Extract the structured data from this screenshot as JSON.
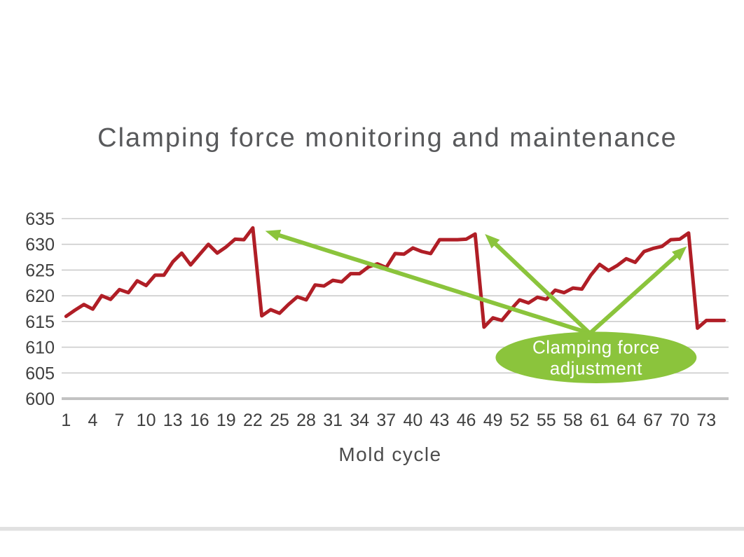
{
  "page": {
    "background_color": "#ffffff"
  },
  "chart_data": {
    "type": "line",
    "title": "Clamping force monitoring and maintenance",
    "xlabel": "Mold cycle",
    "ylabel": "",
    "ylim": [
      600,
      635
    ],
    "y_ticks": [
      600,
      605,
      610,
      615,
      620,
      625,
      630,
      635
    ],
    "x_tick_labels": [
      "1",
      "4",
      "7",
      "10",
      "13",
      "16",
      "19",
      "22",
      "25",
      "28",
      "31",
      "34",
      "37",
      "40",
      "43",
      "46",
      "49",
      "52",
      "55",
      "58",
      "61",
      "64",
      "67",
      "70",
      "73"
    ],
    "grid": "horizontal",
    "legend": "none",
    "colors": {
      "line": "#b01e26",
      "grid": "#cccccc",
      "axis": "#c2c2c2",
      "tick_text": "#3f3f3f",
      "annotation_green": "#8bc43c",
      "annotation_text": "#ffffff",
      "title_text": "#58595b"
    },
    "series": [
      {
        "name": "Clamping force",
        "color": "#b01e26",
        "x_start": 1,
        "values": [
          616.0,
          617.2,
          618.3,
          617.4,
          620.0,
          619.3,
          621.2,
          620.6,
          622.9,
          622.0,
          624.0,
          624.0,
          626.6,
          628.3,
          626.0,
          628.0,
          630.0,
          628.3,
          629.5,
          631.0,
          630.9,
          633.2,
          616.1,
          617.3,
          616.6,
          618.3,
          619.8,
          619.2,
          622.1,
          621.9,
          623.0,
          622.7,
          624.3,
          624.3,
          625.6,
          626.2,
          625.5,
          628.2,
          628.1,
          629.3,
          628.6,
          628.2,
          630.9,
          630.9,
          630.9,
          631.0,
          632.0,
          613.9,
          615.7,
          615.2,
          617.3,
          619.2,
          618.6,
          619.7,
          619.3,
          621.1,
          620.6,
          621.5,
          621.3,
          624.0,
          626.1,
          624.9,
          625.9,
          627.2,
          626.5,
          628.6,
          629.2,
          629.6,
          630.9,
          631.0,
          632.2,
          613.7,
          615.2,
          615.2,
          615.2
        ]
      }
    ],
    "annotation": {
      "label": "Clamping force adjustment",
      "label_lines": [
        "Clamping force",
        "adjustment"
      ],
      "fill": "#8bc43c",
      "text_color": "#ffffff",
      "center": {
        "cycle": 60.6,
        "value": 608.0
      },
      "rx_cycles": 11.3,
      "ry_units": 5.0,
      "arrow_origin": {
        "cycle": 59.9,
        "value": 612.7
      },
      "arrow_targets": [
        {
          "cycle": 23.4,
          "value": 632.6
        },
        {
          "cycle": 48.1,
          "value": 632.0
        },
        {
          "cycle": 70.8,
          "value": 629.6
        }
      ]
    }
  }
}
